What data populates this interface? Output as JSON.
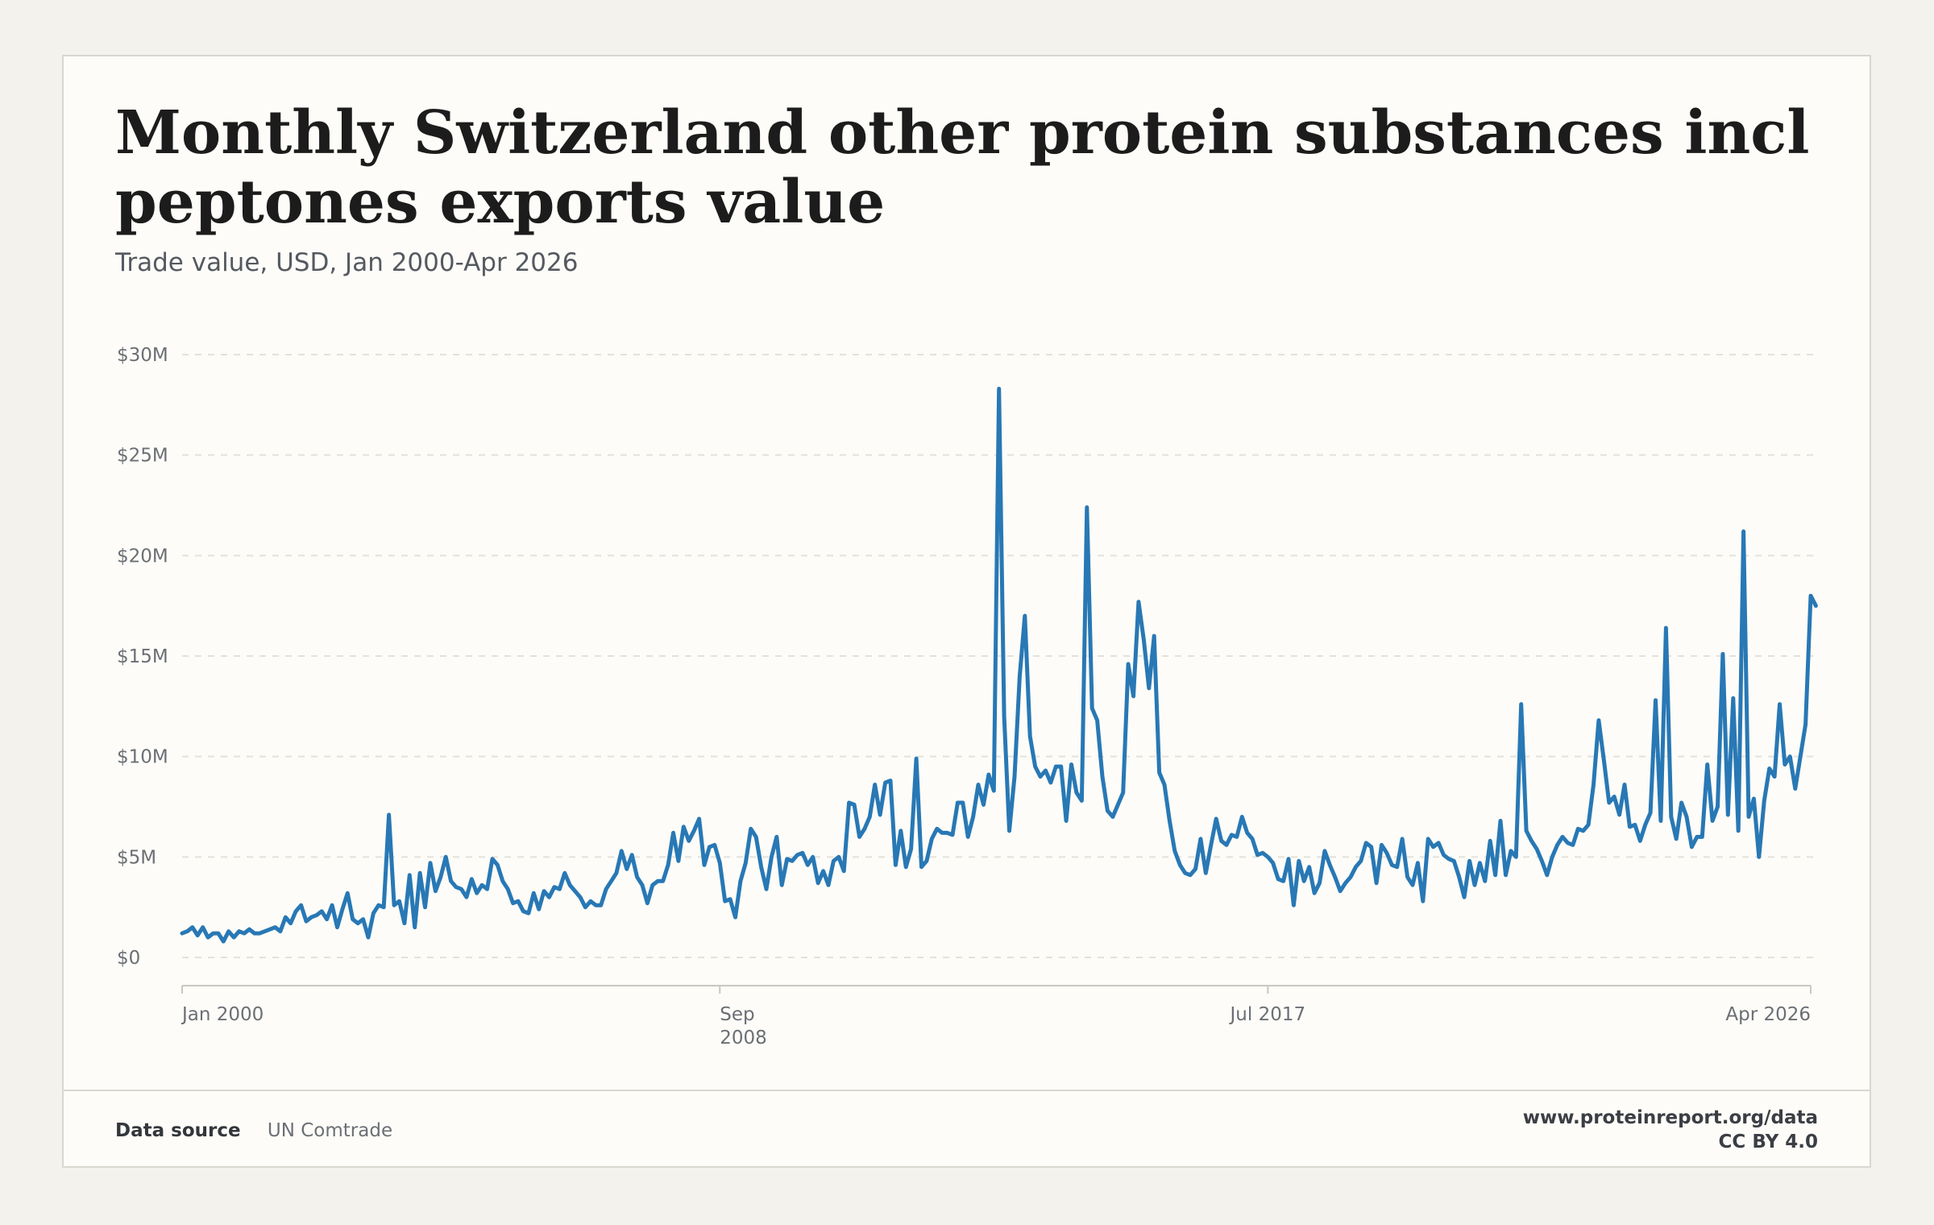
{
  "header": {
    "title": "Monthly Switzerland other protein substances incl peptones exports value",
    "subtitle": "Trade value, USD, Jan 2000-Apr 2026"
  },
  "footer": {
    "source_label": "Data source",
    "source_value": "UN Comtrade",
    "url": "www.proteinreport.org/data",
    "license": "CC BY 4.0"
  },
  "colors": {
    "line": "#2878b5",
    "grid": "#e3e1da",
    "axis": "#c9c7c0",
    "tick_text": "#6b6f75"
  },
  "chart_data": {
    "type": "line",
    "title": "Monthly Switzerland other protein substances incl peptones exports value",
    "subtitle": "Trade value, USD, Jan 2000-Apr 2026",
    "ylim": [
      0,
      30
    ],
    "y_ticks": [
      {
        "value": 0,
        "label": "$0"
      },
      {
        "value": 5,
        "label": "$5M"
      },
      {
        "value": 10,
        "label": "$10M"
      },
      {
        "value": 15,
        "label": "$15M"
      },
      {
        "value": 20,
        "label": "$20M"
      },
      {
        "value": 25,
        "label": "$25M"
      },
      {
        "value": 30,
        "label": "$30M"
      }
    ],
    "x_range": [
      "2000-01",
      "2026-04"
    ],
    "x_ticks": [
      {
        "date": "2000-01",
        "label": [
          "Jan 2000"
        ],
        "anchor": "start"
      },
      {
        "date": "2008-09",
        "label": [
          "Sep",
          "2008"
        ],
        "anchor": "start"
      },
      {
        "date": "2017-07",
        "label": [
          "Jul 2017"
        ],
        "anchor": "middle"
      },
      {
        "date": "2026-04",
        "label": [
          "Apr 2026"
        ],
        "anchor": "end"
      }
    ],
    "grid": "horizontal dashed",
    "legend": "none",
    "units": "USD millions",
    "series": [
      {
        "name": "",
        "start": "2000-01",
        "frequency": "monthly",
        "values": [
          1.2,
          1.3,
          1.5,
          1.1,
          1.5,
          1.0,
          1.2,
          1.2,
          0.8,
          1.3,
          1.0,
          1.3,
          1.2,
          1.4,
          1.2,
          1.2,
          1.3,
          1.4,
          1.5,
          1.3,
          2.0,
          1.7,
          2.3,
          2.6,
          1.8,
          2.0,
          2.1,
          2.3,
          1.9,
          2.6,
          1.5,
          2.4,
          3.2,
          1.9,
          1.7,
          1.9,
          1.0,
          2.2,
          2.6,
          2.5,
          7.1,
          2.6,
          2.8,
          1.7,
          4.1,
          1.5,
          4.2,
          2.5,
          4.7,
          3.3,
          4.0,
          5.0,
          3.8,
          3.5,
          3.4,
          3.0,
          3.9,
          3.2,
          3.6,
          3.4,
          4.9,
          4.6,
          3.8,
          3.4,
          2.7,
          2.8,
          2.3,
          2.2,
          3.2,
          2.4,
          3.3,
          3.0,
          3.5,
          3.4,
          4.2,
          3.6,
          3.3,
          3.0,
          2.5,
          2.8,
          2.6,
          2.6,
          3.4,
          3.8,
          4.2,
          5.3,
          4.4,
          5.1,
          4.0,
          3.6,
          2.7,
          3.6,
          3.8,
          3.8,
          4.6,
          6.2,
          4.8,
          6.5,
          5.8,
          6.3,
          6.9,
          4.6,
          5.5,
          5.6,
          4.7,
          2.8,
          2.9,
          2.0,
          3.8,
          4.7,
          6.4,
          6.0,
          4.5,
          3.4,
          5.0,
          6.0,
          3.6,
          4.9,
          4.8,
          5.1,
          5.2,
          4.6,
          5.0,
          3.7,
          4.3,
          3.6,
          4.8,
          5.0,
          4.3,
          7.7,
          7.6,
          6.0,
          6.4,
          7.0,
          8.6,
          7.1,
          8.7,
          8.8,
          4.6,
          6.3,
          4.5,
          5.4,
          9.9,
          4.5,
          4.8,
          5.9,
          6.4,
          6.2,
          6.2,
          6.1,
          7.7,
          7.7,
          6.0,
          7.0,
          8.6,
          7.6,
          9.1,
          8.3,
          28.3,
          12.0,
          6.3,
          9.0,
          14.0,
          17.0,
          11.0,
          9.5,
          9.0,
          9.3,
          8.7,
          9.5,
          9.5,
          6.8,
          9.6,
          8.2,
          7.8,
          22.4,
          12.4,
          11.8,
          9.0,
          7.3,
          7.0,
          7.6,
          8.2,
          14.6,
          13.0,
          17.7,
          15.8,
          13.4,
          16.0,
          9.2,
          8.6,
          6.8,
          5.3,
          4.6,
          4.2,
          4.1,
          4.4,
          5.9,
          4.2,
          5.6,
          6.9,
          5.8,
          5.6,
          6.1,
          6.0,
          7.0,
          6.2,
          5.9,
          5.1,
          5.2,
          5.0,
          4.7,
          3.9,
          3.8,
          4.9,
          2.6,
          4.8,
          3.8,
          4.5,
          3.2,
          3.7,
          5.3,
          4.6,
          4.0,
          3.3,
          3.7,
          4.0,
          4.5,
          4.8,
          5.7,
          5.5,
          3.7,
          5.6,
          5.2,
          4.6,
          4.5,
          5.9,
          4.0,
          3.6,
          4.7,
          2.8,
          5.9,
          5.5,
          5.7,
          5.1,
          4.9,
          4.8,
          4.0,
          3.0,
          4.8,
          3.6,
          4.7,
          3.8,
          5.8,
          4.1,
          6.8,
          4.1,
          5.3,
          5.0,
          12.6,
          6.3,
          5.8,
          5.4,
          4.8,
          4.1,
          5.0,
          5.6,
          6.0,
          5.7,
          5.6,
          6.4,
          6.3,
          6.6,
          8.6,
          11.8,
          9.8,
          7.7,
          8.0,
          7.1,
          8.6,
          6.5,
          6.6,
          5.8,
          6.6,
          7.2,
          12.8,
          6.8,
          16.4,
          7.0,
          5.9,
          7.7,
          7.0,
          5.5,
          6.0,
          6.0,
          9.6,
          6.8,
          7.5,
          15.1,
          7.1,
          12.9,
          6.3,
          21.2,
          7.0,
          7.9,
          5.0,
          7.8,
          9.4,
          9.0,
          12.6,
          9.6,
          10.0,
          8.4,
          10.0,
          11.6,
          18.0,
          17.5
        ]
      }
    ]
  }
}
